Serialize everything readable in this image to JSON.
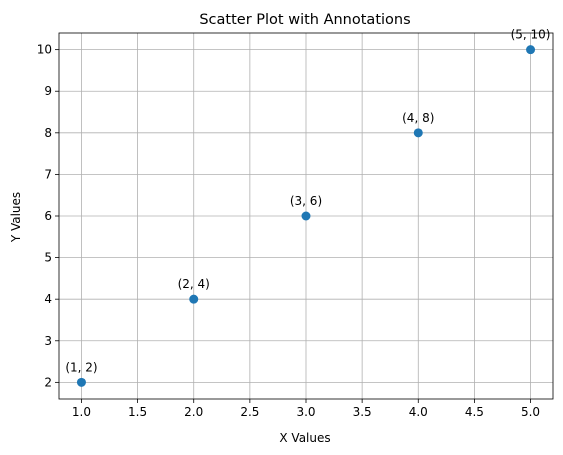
{
  "chart_data": {
    "type": "scatter",
    "title": "Scatter Plot with Annotations",
    "xlabel": "X Values",
    "ylabel": "Y Values",
    "x": [
      1,
      2,
      3,
      4,
      5
    ],
    "y": [
      2,
      4,
      6,
      8,
      10
    ],
    "annotations": [
      "(1, 2)",
      "(2, 4)",
      "(3, 6)",
      "(4, 8)",
      "(5, 10)"
    ],
    "xlim": [
      0.8,
      5.2
    ],
    "ylim": [
      1.6,
      10.4
    ],
    "xticks": [
      1.0,
      1.5,
      2.0,
      2.5,
      3.0,
      3.5,
      4.0,
      4.5,
      5.0
    ],
    "xtick_labels": [
      "1.0",
      "1.5",
      "2.0",
      "2.5",
      "3.0",
      "3.5",
      "4.0",
      "4.5",
      "5.0"
    ],
    "yticks": [
      2,
      3,
      4,
      5,
      6,
      7,
      8,
      9,
      10
    ],
    "ytick_labels": [
      "2",
      "3",
      "4",
      "5",
      "6",
      "7",
      "8",
      "9",
      "10"
    ],
    "grid": true,
    "marker_color": "#1f77b4"
  }
}
